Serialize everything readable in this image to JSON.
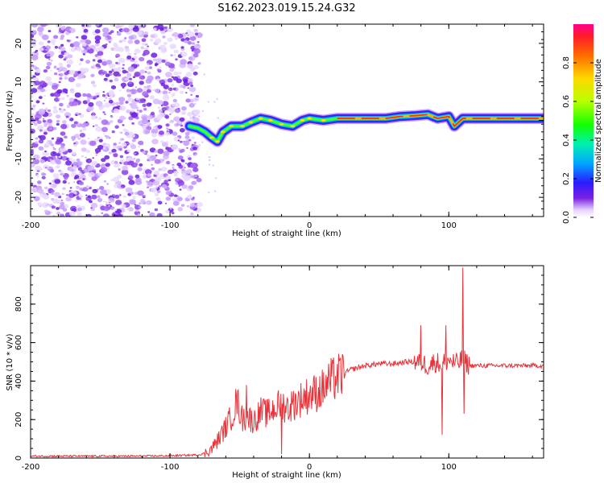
{
  "title": "S162.2023.019.15.24.G32",
  "chart_data": [
    {
      "type": "heatmap",
      "xlabel": "Height of straight line (km)",
      "ylabel": "Frequency (Hz)",
      "xlim": [
        -200,
        168
      ],
      "ylim": [
        -25,
        25
      ],
      "xticks": [
        -200,
        -100,
        0,
        100
      ],
      "yticks": [
        -20,
        -10,
        0,
        10,
        20
      ],
      "colorbar": {
        "label": "Normalized spectral amplitude",
        "range": [
          0,
          1
        ],
        "ticks": [
          0.0,
          0.2,
          0.4,
          0.6,
          0.8
        ]
      },
      "noise_region_x": [
        -200,
        -82
      ],
      "ridge": [
        {
          "x": -86,
          "f": -1.5
        },
        {
          "x": -80,
          "f": -2
        },
        {
          "x": -75,
          "f": -3
        },
        {
          "x": -70,
          "f": -4.5
        },
        {
          "x": -66,
          "f": -5.5
        },
        {
          "x": -62,
          "f": -3
        },
        {
          "x": -56,
          "f": -1.5
        },
        {
          "x": -48,
          "f": -1.5
        },
        {
          "x": -42,
          "f": -0.5
        },
        {
          "x": -35,
          "f": 0.5
        },
        {
          "x": -28,
          "f": 0
        },
        {
          "x": -20,
          "f": -1
        },
        {
          "x": -12,
          "f": -1.5
        },
        {
          "x": -5,
          "f": 0
        },
        {
          "x": 0,
          "f": 0.5
        },
        {
          "x": 10,
          "f": 0
        },
        {
          "x": 20,
          "f": 0.5
        },
        {
          "x": 40,
          "f": 0.5
        },
        {
          "x": 55,
          "f": 0.5
        },
        {
          "x": 65,
          "f": 1
        },
        {
          "x": 75,
          "f": 1.2
        },
        {
          "x": 85,
          "f": 1.5
        },
        {
          "x": 92,
          "f": 0.5
        },
        {
          "x": 100,
          "f": 1
        },
        {
          "x": 104,
          "f": -1.5
        },
        {
          "x": 110,
          "f": 0.5
        },
        {
          "x": 130,
          "f": 0.5
        },
        {
          "x": 168,
          "f": 0.5
        }
      ]
    },
    {
      "type": "line",
      "xlabel": "Height of straight line (km)",
      "ylabel": "SNR (10 * v/v)",
      "xlim": [
        -200,
        168
      ],
      "ylim": [
        0,
        1000
      ],
      "xticks": [
        -200,
        -100,
        0,
        100
      ],
      "yticks": [
        0,
        200,
        400,
        600,
        800
      ],
      "color": "#e8333a",
      "series": [
        {
          "x": [
            -200,
            -180,
            -160,
            -140,
            -120,
            -100,
            -90,
            -80,
            -75,
            -70,
            -65,
            -60,
            -55,
            -52,
            -48,
            -45,
            -40,
            -35,
            -30,
            -25,
            -20,
            -15,
            -10,
            -5,
            0,
            5,
            10,
            15,
            20,
            25,
            30,
            40,
            50,
            60,
            70,
            80,
            85,
            90,
            95,
            100,
            105,
            108,
            110,
            112,
            115,
            130,
            150,
            168
          ],
          "y": [
            10,
            10,
            10,
            10,
            10,
            12,
            14,
            16,
            25,
            50,
            100,
            160,
            230,
            300,
            200,
            220,
            190,
            240,
            230,
            260,
            280,
            260,
            290,
            310,
            330,
            340,
            360,
            400,
            420,
            440,
            460,
            480,
            490,
            490,
            500,
            500,
            480,
            500,
            490,
            510,
            490,
            500,
            520,
            500,
            480,
            480,
            480,
            480
          ]
        }
      ],
      "spikes": [
        {
          "x": -45,
          "y": 380
        },
        {
          "x": -20,
          "y": 450
        },
        {
          "x": -20,
          "y": 20
        },
        {
          "x": 80,
          "y": 690
        },
        {
          "x": 95,
          "y": 120
        },
        {
          "x": 98,
          "y": 690
        },
        {
          "x": 110,
          "y": 990
        },
        {
          "x": 111,
          "y": 230
        }
      ]
    }
  ]
}
